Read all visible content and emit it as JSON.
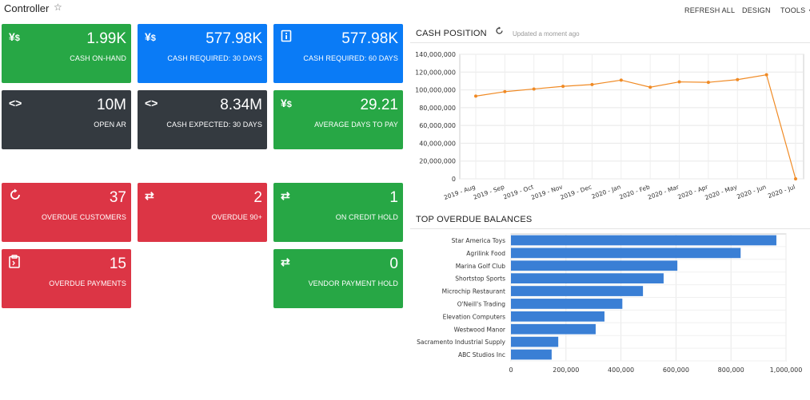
{
  "header": {
    "title": "Controller",
    "refresh_all": "REFRESH ALL",
    "design": "DESIGN",
    "tools": "TOOLS"
  },
  "tiles": [
    {
      "value": "1.99K",
      "label": "CASH ON-HAND",
      "icon": "yen-dollar-icon",
      "color": "#27a745"
    },
    {
      "value": "577.98K",
      "label": "CASH REQUIRED: 30 DAYS",
      "icon": "yen-dollar-icon",
      "color": "#0a7bf6"
    },
    {
      "value": "577.98K",
      "label": "CASH REQUIRED: 60 DAYS",
      "icon": "info-doc-icon",
      "color": "#0a7bf6"
    },
    {
      "value": "10M",
      "label": "OPEN AR",
      "icon": "code-icon",
      "color": "#343a40"
    },
    {
      "value": "8.34M",
      "label": "CASH EXPECTED: 30 DAYS",
      "icon": "code-icon",
      "color": "#343a40"
    },
    {
      "value": "29.21",
      "label": "AVERAGE DAYS TO PAY",
      "icon": "yen-dollar-icon",
      "color": "#27a745"
    },
    {
      "value": "37",
      "label": "OVERDUE CUSTOMERS",
      "icon": "refresh-icon",
      "color": "#dc3545"
    },
    {
      "value": "2",
      "label": "OVERDUE 90+",
      "icon": "exchange-icon",
      "color": "#dc3545"
    },
    {
      "value": "1",
      "label": "ON CREDIT HOLD",
      "icon": "exchange-icon",
      "color": "#27a745"
    },
    {
      "value": "15",
      "label": "OVERDUE PAYMENTS",
      "icon": "clipboard-icon",
      "color": "#dc3545"
    },
    {
      "value": "0",
      "label": "VENDOR PAYMENT HOLD",
      "icon": "exchange-icon",
      "color": "#27a745"
    }
  ],
  "cash_position": {
    "title": "CASH POSITION",
    "updated": "Updated a moment ago"
  },
  "top_overdue": {
    "title": "TOP OVERDUE BALANCES"
  },
  "chart_data": [
    {
      "type": "line",
      "title": "CASH POSITION",
      "categories": [
        "2019 - Aug",
        "2019 - Sep",
        "2019 - Oct",
        "2019 - Nov",
        "2019 - Dec",
        "2020 - Jan",
        "2020 - Feb",
        "2020 - Mar",
        "2020 - Apr",
        "2020 - May",
        "2020 - Jun",
        "2020 - Jul"
      ],
      "values": [
        93000000,
        98000000,
        101000000,
        104000000,
        106000000,
        111000000,
        103000000,
        109000000,
        108500000,
        111500000,
        117000000,
        0
      ],
      "ylim": [
        0,
        140000000
      ],
      "yticks": [
        "0",
        "20,000,000",
        "40,000,000",
        "60,000,000",
        "80,000,000",
        "100,000,000",
        "120,000,000",
        "140,000,000"
      ],
      "color": "#f08a24",
      "grid": true
    },
    {
      "type": "bar",
      "title": "TOP OVERDUE BALANCES",
      "orientation": "horizontal",
      "categories": [
        "Star America Toys",
        "Agrilink Food",
        "Marina Golf Club",
        "Shortstop Sports",
        "Microchip Restaurant",
        "O'Neill's Trading",
        "Elevation Computers",
        "Westwood Manor",
        "Sacramento Industrial Supply",
        "ABC Studios Inc"
      ],
      "values": [
        965000,
        835000,
        605000,
        555000,
        480000,
        405000,
        340000,
        308000,
        172000,
        148000
      ],
      "xlim": [
        0,
        1000000
      ],
      "xticks": [
        "0",
        "200,000",
        "400,000",
        "600,000",
        "800,000",
        "1,000,000"
      ],
      "color": "#3a7fd5",
      "grid": true
    }
  ]
}
